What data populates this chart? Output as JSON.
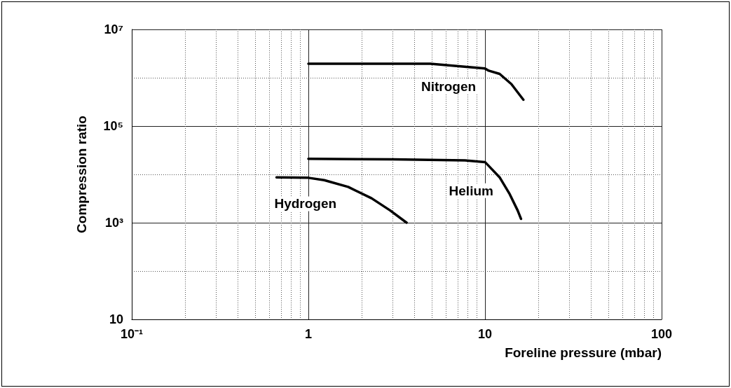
{
  "chart_data": {
    "type": "line",
    "xlabel": "Foreline pressure (mbar)",
    "ylabel": "Compression ratio",
    "log": "xy",
    "grid": true,
    "marker": "none",
    "line_style": "solid",
    "xlim": [
      0.1,
      100
    ],
    "ylim": [
      10,
      10000000
    ],
    "xticks": [
      {
        "value": 0.1,
        "label": "10⁻¹"
      },
      {
        "value": 0.2,
        "label": null
      },
      {
        "value": 0.3,
        "label": null
      },
      {
        "value": 0.4,
        "label": null
      },
      {
        "value": 0.5,
        "label": null
      },
      {
        "value": 0.6,
        "label": null
      },
      {
        "value": 0.7,
        "label": null
      },
      {
        "value": 0.8,
        "label": null
      },
      {
        "value": 0.9,
        "label": null
      },
      1,
      {
        "value": 2,
        "label": null
      },
      {
        "value": 3,
        "label": null
      },
      {
        "value": 4,
        "label": null
      },
      {
        "value": 5,
        "label": null
      },
      {
        "value": 6,
        "label": null
      },
      {
        "value": 7,
        "label": null
      },
      {
        "value": 8,
        "label": null
      },
      {
        "value": 9,
        "label": null
      },
      10,
      {
        "value": 20,
        "label": null
      },
      {
        "value": 30,
        "label": null
      },
      {
        "value": 40,
        "label": null
      },
      {
        "value": 50,
        "label": null
      },
      {
        "value": 60,
        "label": null
      },
      {
        "value": 70,
        "label": null
      },
      {
        "value": 80,
        "label": null
      },
      {
        "value": 90,
        "label": null
      },
      100
    ],
    "yticks": [
      10,
      {
        "value": 100,
        "label": null
      },
      {
        "value": 1000,
        "label": "10³"
      },
      {
        "value": 10000,
        "label": null
      },
      {
        "value": 100000,
        "label": "10⁵"
      },
      {
        "value": 1000000,
        "label": null
      },
      {
        "value": 10000000,
        "label": "10⁷"
      }
    ],
    "series": [
      {
        "name": "Nitrogen",
        "color": "#000000",
        "x": [
          1,
          2,
          4.9,
          10,
          10.5,
          12.1,
          14.1,
          16.5
        ],
        "values": [
          1950000,
          1950000,
          1950000,
          1550000,
          1400000,
          1200000,
          740000,
          350000
        ]
      },
      {
        "name": "Helium",
        "color": "#000000",
        "x": [
          1,
          3,
          7.7,
          10,
          10.5,
          12.1,
          13.8,
          15.3,
          16
        ],
        "values": [
          21000,
          20500,
          19500,
          18000,
          15000,
          8700,
          3900,
          1800,
          1200
        ]
      },
      {
        "name": "Hydrogen",
        "color": "#000000",
        "x": [
          0.66,
          1,
          1.23,
          1.68,
          2.28,
          2.9,
          3.6
        ],
        "values": [
          8700,
          8500,
          7600,
          5500,
          3200,
          1800,
          1000
        ]
      }
    ]
  }
}
